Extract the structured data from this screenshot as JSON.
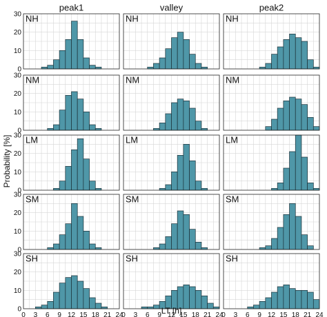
{
  "chart_data": {
    "type": "bar",
    "x_tick_labels": [
      "0",
      "3",
      "6",
      "9",
      "12",
      "15",
      "18",
      "21",
      "24"
    ],
    "y_tick_labels": [
      "0",
      "10",
      "20",
      "30"
    ],
    "bin_width_h": 1.5,
    "xlim": [
      0,
      24
    ],
    "ylim": [
      0,
      30
    ],
    "grid": true,
    "xlabel": "LT [h]",
    "ylabel": "Probability [%]",
    "columns": [
      "peak1",
      "valley",
      "peak2"
    ],
    "rows": [
      "NH",
      "NM",
      "LM",
      "SM",
      "SH"
    ],
    "bar_color": "#4f97a8",
    "panels": [
      {
        "row": "NH",
        "column": "peak1",
        "bins": [
          [
            4.5,
            1
          ],
          [
            6,
            2
          ],
          [
            7.5,
            5
          ],
          [
            9,
            10
          ],
          [
            10.5,
            16
          ],
          [
            12,
            26
          ],
          [
            13.5,
            16
          ],
          [
            15,
            6
          ],
          [
            16.5,
            2
          ],
          [
            18,
            1
          ]
        ]
      },
      {
        "row": "NH",
        "column": "valley",
        "bins": [
          [
            6,
            1
          ],
          [
            7.5,
            3
          ],
          [
            9,
            6
          ],
          [
            10.5,
            11
          ],
          [
            12,
            17
          ],
          [
            13.5,
            20
          ],
          [
            15,
            16
          ],
          [
            16.5,
            8
          ],
          [
            18,
            3
          ],
          [
            19.5,
            1
          ]
        ]
      },
      {
        "row": "NH",
        "column": "peak2",
        "bins": [
          [
            9,
            1
          ],
          [
            10.5,
            3
          ],
          [
            12,
            8
          ],
          [
            13.5,
            12
          ],
          [
            15,
            16
          ],
          [
            16.5,
            19
          ],
          [
            18,
            17
          ],
          [
            19.5,
            15
          ],
          [
            21,
            5
          ],
          [
            22.5,
            1
          ]
        ]
      },
      {
        "row": "NM",
        "column": "peak1",
        "bins": [
          [
            6,
            1
          ],
          [
            7.5,
            3
          ],
          [
            9,
            11
          ],
          [
            10.5,
            19
          ],
          [
            12,
            21
          ],
          [
            13.5,
            17
          ],
          [
            15,
            10
          ],
          [
            16.5,
            3
          ],
          [
            18,
            1
          ]
        ]
      },
      {
        "row": "NM",
        "column": "valley",
        "bins": [
          [
            7.5,
            1
          ],
          [
            9,
            4
          ],
          [
            10.5,
            9
          ],
          [
            12,
            15
          ],
          [
            13.5,
            17
          ],
          [
            15,
            16
          ],
          [
            16.5,
            12
          ],
          [
            18,
            5
          ],
          [
            19.5,
            1
          ]
        ]
      },
      {
        "row": "NM",
        "column": "peak2",
        "bins": [
          [
            10.5,
            2
          ],
          [
            12,
            6
          ],
          [
            13.5,
            12
          ],
          [
            15,
            16
          ],
          [
            16.5,
            18
          ],
          [
            18,
            17
          ],
          [
            19.5,
            14
          ],
          [
            21,
            7
          ],
          [
            22.5,
            2
          ]
        ]
      },
      {
        "row": "LM",
        "column": "peak1",
        "bins": [
          [
            7.5,
            1
          ],
          [
            9,
            5
          ],
          [
            10.5,
            13
          ],
          [
            12,
            22
          ],
          [
            13.5,
            28
          ],
          [
            15,
            17
          ],
          [
            16.5,
            5
          ],
          [
            18,
            1
          ]
        ]
      },
      {
        "row": "LM",
        "column": "valley",
        "bins": [
          [
            9,
            1
          ],
          [
            10.5,
            3
          ],
          [
            12,
            10
          ],
          [
            13.5,
            19
          ],
          [
            15,
            25
          ],
          [
            16.5,
            16
          ],
          [
            18,
            5
          ],
          [
            19.5,
            1
          ]
        ]
      },
      {
        "row": "LM",
        "column": "peak2",
        "bins": [
          [
            12,
            1
          ],
          [
            13.5,
            4
          ],
          [
            15,
            12
          ],
          [
            16.5,
            21
          ],
          [
            18,
            30
          ],
          [
            19.5,
            18
          ],
          [
            21,
            4
          ],
          [
            22.5,
            1
          ]
        ]
      },
      {
        "row": "SM",
        "column": "peak1",
        "bins": [
          [
            6,
            1
          ],
          [
            7.5,
            3
          ],
          [
            9,
            8
          ],
          [
            10.5,
            14
          ],
          [
            12,
            25
          ],
          [
            13.5,
            18
          ],
          [
            15,
            10
          ],
          [
            16.5,
            3
          ],
          [
            18,
            1
          ]
        ]
      },
      {
        "row": "SM",
        "column": "valley",
        "bins": [
          [
            7.5,
            1
          ],
          [
            9,
            3
          ],
          [
            10.5,
            7
          ],
          [
            12,
            14
          ],
          [
            13.5,
            21
          ],
          [
            15,
            19
          ],
          [
            16.5,
            11
          ],
          [
            18,
            4
          ],
          [
            19.5,
            1
          ]
        ]
      },
      {
        "row": "SM",
        "column": "peak2",
        "bins": [
          [
            9,
            1
          ],
          [
            10.5,
            2
          ],
          [
            12,
            6
          ],
          [
            13.5,
            12
          ],
          [
            15,
            19
          ],
          [
            16.5,
            25
          ],
          [
            18,
            18
          ],
          [
            19.5,
            8
          ],
          [
            21,
            2
          ]
        ]
      },
      {
        "row": "SH",
        "column": "peak1",
        "bins": [
          [
            3,
            1
          ],
          [
            4.5,
            2
          ],
          [
            6,
            4
          ],
          [
            7.5,
            9
          ],
          [
            9,
            14
          ],
          [
            10.5,
            17
          ],
          [
            12,
            18
          ],
          [
            13.5,
            15
          ],
          [
            15,
            11
          ],
          [
            16.5,
            6
          ],
          [
            18,
            3
          ],
          [
            19.5,
            1
          ]
        ]
      },
      {
        "row": "SH",
        "column": "valley",
        "bins": [
          [
            4.5,
            1
          ],
          [
            6,
            1
          ],
          [
            7.5,
            2
          ],
          [
            9,
            4
          ],
          [
            10.5,
            7
          ],
          [
            12,
            10
          ],
          [
            13.5,
            12
          ],
          [
            15,
            13
          ],
          [
            16.5,
            12
          ],
          [
            18,
            10
          ],
          [
            19.5,
            7
          ],
          [
            21,
            3
          ],
          [
            22.5,
            1
          ]
        ]
      },
      {
        "row": "SH",
        "column": "peak2",
        "bins": [
          [
            6,
            1
          ],
          [
            7.5,
            2
          ],
          [
            9,
            4
          ],
          [
            10.5,
            6
          ],
          [
            12,
            9
          ],
          [
            13.5,
            12
          ],
          [
            15,
            13
          ],
          [
            16.5,
            11
          ],
          [
            18,
            10
          ],
          [
            19.5,
            10
          ],
          [
            21,
            9
          ],
          [
            22.5,
            5
          ]
        ]
      }
    ]
  }
}
